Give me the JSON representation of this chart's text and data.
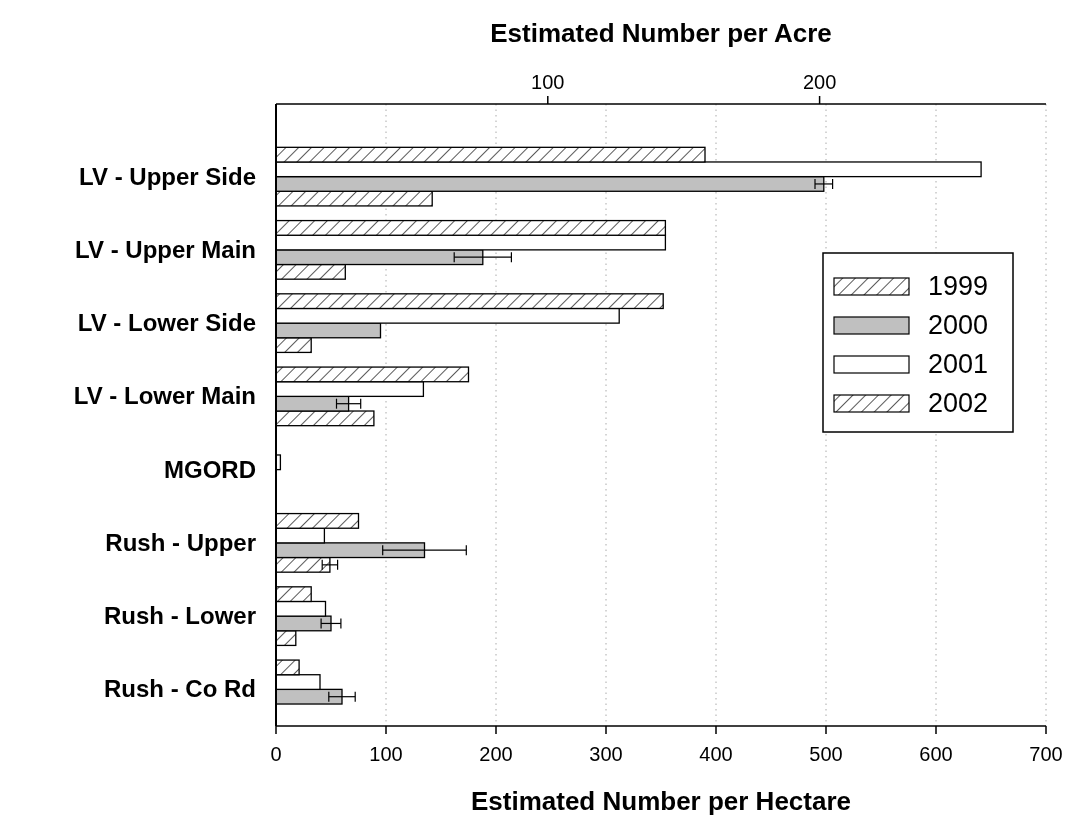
{
  "chart_data": {
    "type": "bar",
    "orientation": "horizontal",
    "xlabel": "Estimated Number per Hectare",
    "x2label": "Estimated Number per Acre",
    "categories": [
      "LV - Upper Side",
      "LV - Upper Main",
      "LV - Lower Side",
      "LV - Lower Main",
      "MGORD",
      "Rush - Upper",
      "Rush - Lower",
      "Rush - Co Rd"
    ],
    "series": [
      {
        "name": "1999",
        "color": "#000000",
        "values": [
          142,
          63,
          32,
          89,
          null,
          49,
          18,
          null
        ],
        "errors": [
          null,
          null,
          null,
          null,
          null,
          7,
          null,
          null
        ]
      },
      {
        "name": "2000",
        "color": "#c0c0c0",
        "values": [
          498,
          188,
          95,
          66,
          null,
          135,
          50,
          60
        ],
        "errors": [
          8,
          26,
          null,
          11,
          null,
          38,
          9,
          12
        ]
      },
      {
        "name": "2001",
        "color": "#ffffff",
        "values": [
          641,
          354,
          312,
          134,
          4,
          44,
          45,
          40
        ]
      },
      {
        "name": "2002",
        "color": "#000000",
        "values": [
          390,
          354,
          352,
          175,
          null,
          75,
          32,
          21
        ]
      }
    ],
    "xlim": [
      0,
      700
    ],
    "xticks": [
      0,
      100,
      200,
      300,
      400,
      500,
      600,
      700
    ],
    "x2lim": [
      0,
      283.3
    ],
    "x2ticks": [
      100,
      200
    ],
    "grid": "x",
    "legend": "right"
  }
}
